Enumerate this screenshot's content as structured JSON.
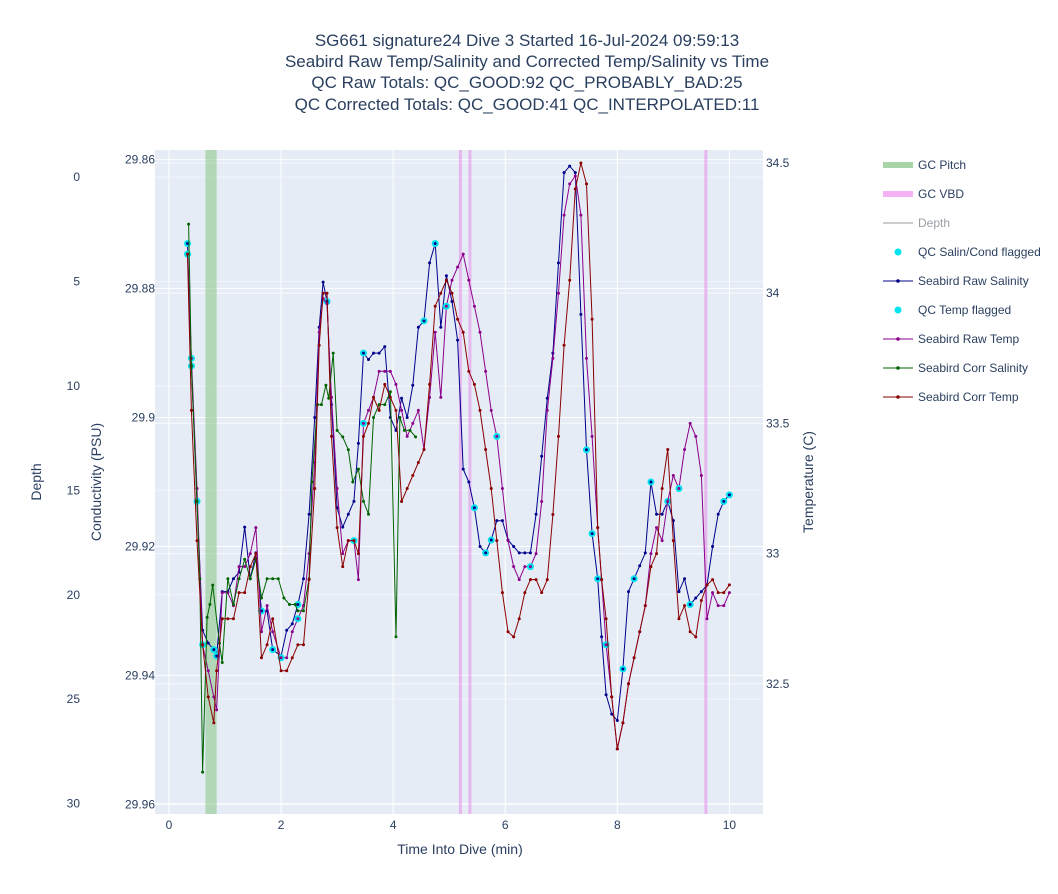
{
  "chart_data": {
    "type": "line",
    "title_lines": [
      "SG661 signature24 Dive 3 Started 16-Jul-2024 09:59:13",
      "Seabird Raw Temp/Salinity and Corrected Temp/Salinity vs Time",
      "QC Raw Totals: QC_GOOD:92 QC_PROBABLY_BAD:25",
      "QC Corrected Totals: QC_GOOD:41 QC_INTERPOLATED:11"
    ],
    "xlabel": "Time Into Dive (min)",
    "ylabel_depth": "Depth",
    "ylabel_cond": "Conductivity (PSU)",
    "ylabel_temp": "Temperature (C)",
    "xlim": [
      -0.25,
      10.6
    ],
    "depth_range": [
      30.5,
      -1.3
    ],
    "cond_range": [
      29.9615,
      29.8585
    ],
    "temp_range": [
      32.0,
      34.55
    ],
    "x_ticks": [
      0,
      2,
      4,
      6,
      8,
      10
    ],
    "depth_ticks": [
      0,
      5,
      10,
      15,
      20,
      25,
      30
    ],
    "cond_ticks": [
      29.86,
      29.88,
      29.9,
      29.92,
      29.94,
      29.96
    ],
    "temp_ticks": [
      32.5,
      33,
      33.5,
      34,
      34.5
    ],
    "pitch_bands": [
      [
        0.65,
        0.85
      ]
    ],
    "vbd_lines": [
      5.2,
      5.37,
      9.58
    ],
    "legend": [
      {
        "name": "GC Pitch",
        "kind": "band",
        "color": "#a8d5a8",
        "dim": false
      },
      {
        "name": "GC VBD",
        "kind": "band",
        "color": "#f5b3f5",
        "dim": false
      },
      {
        "name": "Depth",
        "kind": "line",
        "color": "#cccccc",
        "dim": true
      },
      {
        "name": "QC Salin/Cond flagged",
        "kind": "dot",
        "color": "#00e5ee",
        "dim": false
      },
      {
        "name": "Seabird Raw Salinity",
        "kind": "line",
        "color": "#00008b",
        "dim": false
      },
      {
        "name": "QC Temp flagged",
        "kind": "dot",
        "color": "#00e5ee",
        "dim": false
      },
      {
        "name": "Seabird Raw Temp",
        "kind": "line",
        "color": "#8b008b",
        "dim": false
      },
      {
        "name": "Seabird Corr Salinity",
        "kind": "line",
        "color": "#006400",
        "dim": false
      },
      {
        "name": "Seabird Corr Temp",
        "kind": "line",
        "color": "#8b0000",
        "dim": false
      }
    ],
    "series": [
      {
        "name": "Seabird Raw Salinity",
        "axis": "cond",
        "color": "#00008b",
        "x": [
          0.33,
          0.4,
          0.5,
          0.6,
          0.7,
          0.8,
          0.85,
          0.95,
          1.05,
          1.15,
          1.25,
          1.35,
          1.45,
          1.55,
          1.65,
          1.75,
          1.85,
          2.0,
          2.1,
          2.2,
          2.3,
          2.4,
          2.5,
          2.6,
          2.68,
          2.75,
          2.82,
          2.9,
          3.0,
          3.1,
          3.2,
          3.3,
          3.38,
          3.47,
          3.56,
          3.65,
          3.75,
          3.85,
          3.95,
          4.05,
          4.15,
          4.25,
          4.35,
          4.45,
          4.55,
          4.65,
          4.75,
          4.85,
          4.95,
          5.05,
          5.15,
          5.25,
          5.35,
          5.45,
          5.55,
          5.65,
          5.75,
          5.85,
          5.95,
          6.05,
          6.15,
          6.25,
          6.35,
          6.45,
          6.55,
          6.65,
          6.75,
          6.85,
          6.95,
          7.05,
          7.15,
          7.25,
          7.35,
          7.45,
          7.55,
          7.65,
          7.72,
          7.8,
          7.9,
          8.0,
          8.1,
          8.2,
          8.3,
          8.4,
          8.5,
          8.6,
          8.7,
          8.8,
          8.9,
          9.0,
          9.1,
          9.2,
          9.3,
          9.4,
          9.5,
          9.6,
          9.7,
          9.8,
          9.9,
          10.0
        ],
        "y": [
          29.873,
          29.892,
          29.913,
          29.933,
          29.935,
          29.936,
          29.937,
          29.927,
          29.927,
          29.925,
          29.924,
          29.917,
          29.925,
          29.921,
          29.93,
          29.93,
          29.936,
          29.937,
          29.933,
          29.932,
          29.929,
          29.925,
          29.915,
          29.9,
          29.886,
          29.879,
          29.882,
          29.898,
          29.914,
          29.917,
          29.915,
          29.913,
          29.904,
          29.89,
          29.891,
          29.89,
          29.89,
          29.889,
          29.9,
          29.902,
          29.897,
          29.9,
          29.895,
          29.886,
          29.885,
          29.876,
          29.873,
          29.886,
          29.878,
          29.882,
          29.888,
          29.908,
          29.91,
          29.914,
          29.92,
          29.921,
          29.919,
          29.916,
          29.916,
          29.919,
          29.92,
          29.921,
          29.921,
          29.921,
          29.915,
          29.906,
          29.897,
          29.89,
          29.876,
          29.862,
          29.861,
          29.862,
          29.884,
          29.905,
          29.918,
          29.925,
          29.934,
          29.943,
          29.946,
          29.947,
          29.939,
          29.927,
          29.925,
          29.923,
          29.921,
          29.91,
          29.915,
          29.915,
          29.913,
          29.916,
          29.927,
          29.925,
          29.929,
          29.928,
          29.927,
          29.926,
          29.92,
          29.915,
          29.913,
          29.912
        ],
        "flagged": [
          0,
          1,
          2,
          5,
          6,
          14,
          16,
          20,
          26,
          33,
          44,
          46,
          53,
          55,
          56,
          73,
          74,
          75,
          80,
          82,
          85,
          88,
          92,
          98,
          99
        ]
      },
      {
        "name": "Seabird Raw Temp",
        "axis": "temp",
        "color": "#8b008b",
        "x": [
          0.33,
          0.4,
          0.5,
          0.6,
          0.7,
          0.8,
          0.85,
          0.95,
          1.05,
          1.15,
          1.25,
          1.35,
          1.45,
          1.55,
          1.65,
          1.75,
          1.85,
          2.0,
          2.1,
          2.2,
          2.3,
          2.4,
          2.5,
          2.6,
          2.68,
          2.75,
          2.82,
          2.9,
          3.0,
          3.1,
          3.2,
          3.3,
          3.38,
          3.47,
          3.56,
          3.65,
          3.75,
          3.85,
          3.95,
          4.05,
          4.15,
          4.25,
          4.35,
          4.45,
          4.55,
          4.65,
          4.75,
          4.85,
          4.95,
          5.05,
          5.15,
          5.25,
          5.35,
          5.45,
          5.55,
          5.65,
          5.75,
          5.85,
          5.95,
          6.05,
          6.15,
          6.25,
          6.35,
          6.45,
          6.55,
          6.65,
          6.75,
          6.85,
          6.95,
          7.05,
          7.15,
          7.25,
          7.35,
          7.45,
          7.55,
          7.65,
          7.72,
          7.8,
          7.9,
          8.0,
          8.1,
          8.2,
          8.3,
          8.4,
          8.5,
          8.6,
          8.7,
          8.8,
          8.9,
          9.0,
          9.1,
          9.2,
          9.3,
          9.4,
          9.5,
          9.6,
          9.7,
          9.8,
          9.9,
          10.0
        ],
        "y": [
          34.15,
          33.75,
          33.25,
          32.65,
          32.55,
          32.45,
          32.4,
          32.85,
          32.85,
          32.8,
          32.95,
          32.95,
          33.0,
          33.1,
          32.7,
          32.8,
          32.7,
          32.6,
          32.6,
          32.7,
          32.75,
          32.8,
          33.0,
          33.35,
          33.85,
          33.98,
          33.96,
          33.6,
          33.25,
          33.0,
          33.05,
          33.05,
          32.9,
          33.5,
          33.55,
          33.6,
          33.7,
          33.7,
          33.7,
          33.65,
          33.55,
          33.45,
          33.5,
          33.55,
          33.4,
          33.6,
          33.85,
          33.6,
          33.95,
          34.05,
          34.1,
          34.15,
          34.05,
          33.95,
          33.85,
          33.7,
          33.55,
          33.45,
          33.25,
          33.05,
          32.95,
          32.9,
          32.95,
          32.95,
          33.0,
          33.2,
          33.55,
          33.75,
          34.0,
          34.3,
          34.42,
          34.45,
          34.3,
          33.75,
          33.45,
          33.1,
          32.9,
          32.65,
          32.45,
          32.25,
          32.35,
          32.5,
          32.6,
          32.7,
          32.8,
          33.0,
          33.1,
          33.05,
          33.2,
          33.3,
          33.25,
          33.4,
          33.5,
          33.45,
          33.3,
          32.75,
          32.85,
          32.8,
          32.8,
          32.85
        ],
        "flagged": [
          0,
          1,
          3,
          17,
          20,
          31,
          33,
          48,
          57,
          63,
          77,
          90
        ]
      },
      {
        "name": "Seabird Corr Salinity",
        "axis": "cond",
        "color": "#006400",
        "x": [
          0.35,
          0.4,
          0.5,
          0.55,
          0.6,
          0.68,
          0.73,
          0.78,
          0.9,
          0.95,
          1.05,
          1.15,
          1.25,
          1.35,
          1.45,
          1.55,
          1.65,
          1.75,
          1.85,
          1.95,
          2.05,
          2.15,
          2.25,
          2.3,
          2.4,
          2.5,
          2.55,
          2.65,
          2.72,
          2.8,
          2.85,
          2.93,
          3.0,
          3.1,
          3.2,
          3.28,
          3.38,
          3.47,
          3.56,
          3.65,
          3.75,
          3.85,
          3.95,
          4.05,
          4.12,
          4.2,
          4.3,
          4.4
        ],
        "y": [
          29.87,
          29.892,
          29.913,
          29.925,
          29.955,
          29.931,
          29.929,
          29.926,
          29.935,
          29.938,
          29.925,
          29.929,
          29.925,
          29.922,
          29.925,
          29.922,
          29.928,
          29.925,
          29.925,
          29.925,
          29.928,
          29.929,
          29.929,
          29.93,
          29.93,
          29.925,
          29.91,
          29.898,
          29.898,
          29.895,
          29.897,
          29.89,
          29.902,
          29.903,
          29.905,
          29.91,
          29.908,
          29.913,
          29.915,
          29.9,
          29.898,
          29.898,
          29.896,
          29.934,
          29.9,
          29.902,
          29.902,
          29.903
        ],
        "flagged": []
      },
      {
        "name": "Seabird Corr Temp",
        "axis": "temp",
        "color": "#8b0000",
        "x": [
          0.33,
          0.4,
          0.5,
          0.6,
          0.7,
          0.8,
          0.85,
          0.95,
          1.05,
          1.15,
          1.25,
          1.35,
          1.45,
          1.55,
          1.65,
          1.75,
          1.85,
          2.0,
          2.1,
          2.2,
          2.3,
          2.4,
          2.5,
          2.6,
          2.68,
          2.75,
          2.82,
          2.9,
          3.0,
          3.1,
          3.2,
          3.3,
          3.38,
          3.47,
          3.56,
          3.65,
          3.75,
          3.85,
          3.95,
          4.05,
          4.15,
          4.25,
          4.35,
          4.45,
          4.55,
          4.65,
          4.75,
          4.85,
          4.95,
          5.05,
          5.15,
          5.25,
          5.35,
          5.45,
          5.55,
          5.65,
          5.75,
          5.85,
          5.95,
          6.05,
          6.15,
          6.25,
          6.35,
          6.45,
          6.55,
          6.65,
          6.75,
          6.85,
          6.95,
          7.05,
          7.15,
          7.25,
          7.35,
          7.45,
          7.55,
          7.65,
          7.72,
          7.8,
          7.9,
          8.0,
          8.1,
          8.2,
          8.3,
          8.4,
          8.5,
          8.6,
          8.7,
          8.8,
          8.9,
          9.0,
          9.1,
          9.2,
          9.3,
          9.4,
          9.5,
          9.6,
          9.7,
          9.8,
          9.9,
          10.0
        ],
        "y": [
          34.15,
          33.55,
          33.05,
          32.65,
          32.45,
          32.35,
          32.55,
          32.75,
          32.75,
          32.75,
          32.85,
          32.85,
          32.95,
          33.0,
          32.6,
          32.65,
          32.75,
          32.55,
          32.55,
          32.6,
          32.65,
          32.65,
          32.9,
          33.25,
          33.8,
          34.0,
          34.0,
          33.45,
          33.1,
          32.95,
          33.05,
          33.05,
          33.0,
          33.45,
          33.5,
          33.6,
          33.55,
          33.65,
          33.6,
          33.55,
          33.2,
          33.25,
          33.3,
          33.35,
          33.4,
          33.65,
          33.95,
          34.0,
          34.05,
          34.0,
          33.9,
          33.85,
          33.7,
          33.65,
          33.55,
          33.4,
          33.25,
          33.05,
          32.85,
          32.7,
          32.68,
          32.75,
          32.85,
          32.9,
          32.9,
          32.85,
          32.9,
          33.15,
          33.45,
          33.8,
          34.05,
          34.4,
          34.5,
          34.42,
          33.9,
          33.1,
          32.9,
          32.75,
          32.45,
          32.25,
          32.35,
          32.5,
          32.6,
          32.7,
          32.8,
          32.95,
          33.0,
          33.25,
          33.4,
          33.05,
          32.75,
          32.8,
          32.7,
          32.68,
          32.82,
          32.88,
          32.9,
          32.85,
          32.85,
          32.88
        ],
        "flagged": []
      }
    ]
  }
}
